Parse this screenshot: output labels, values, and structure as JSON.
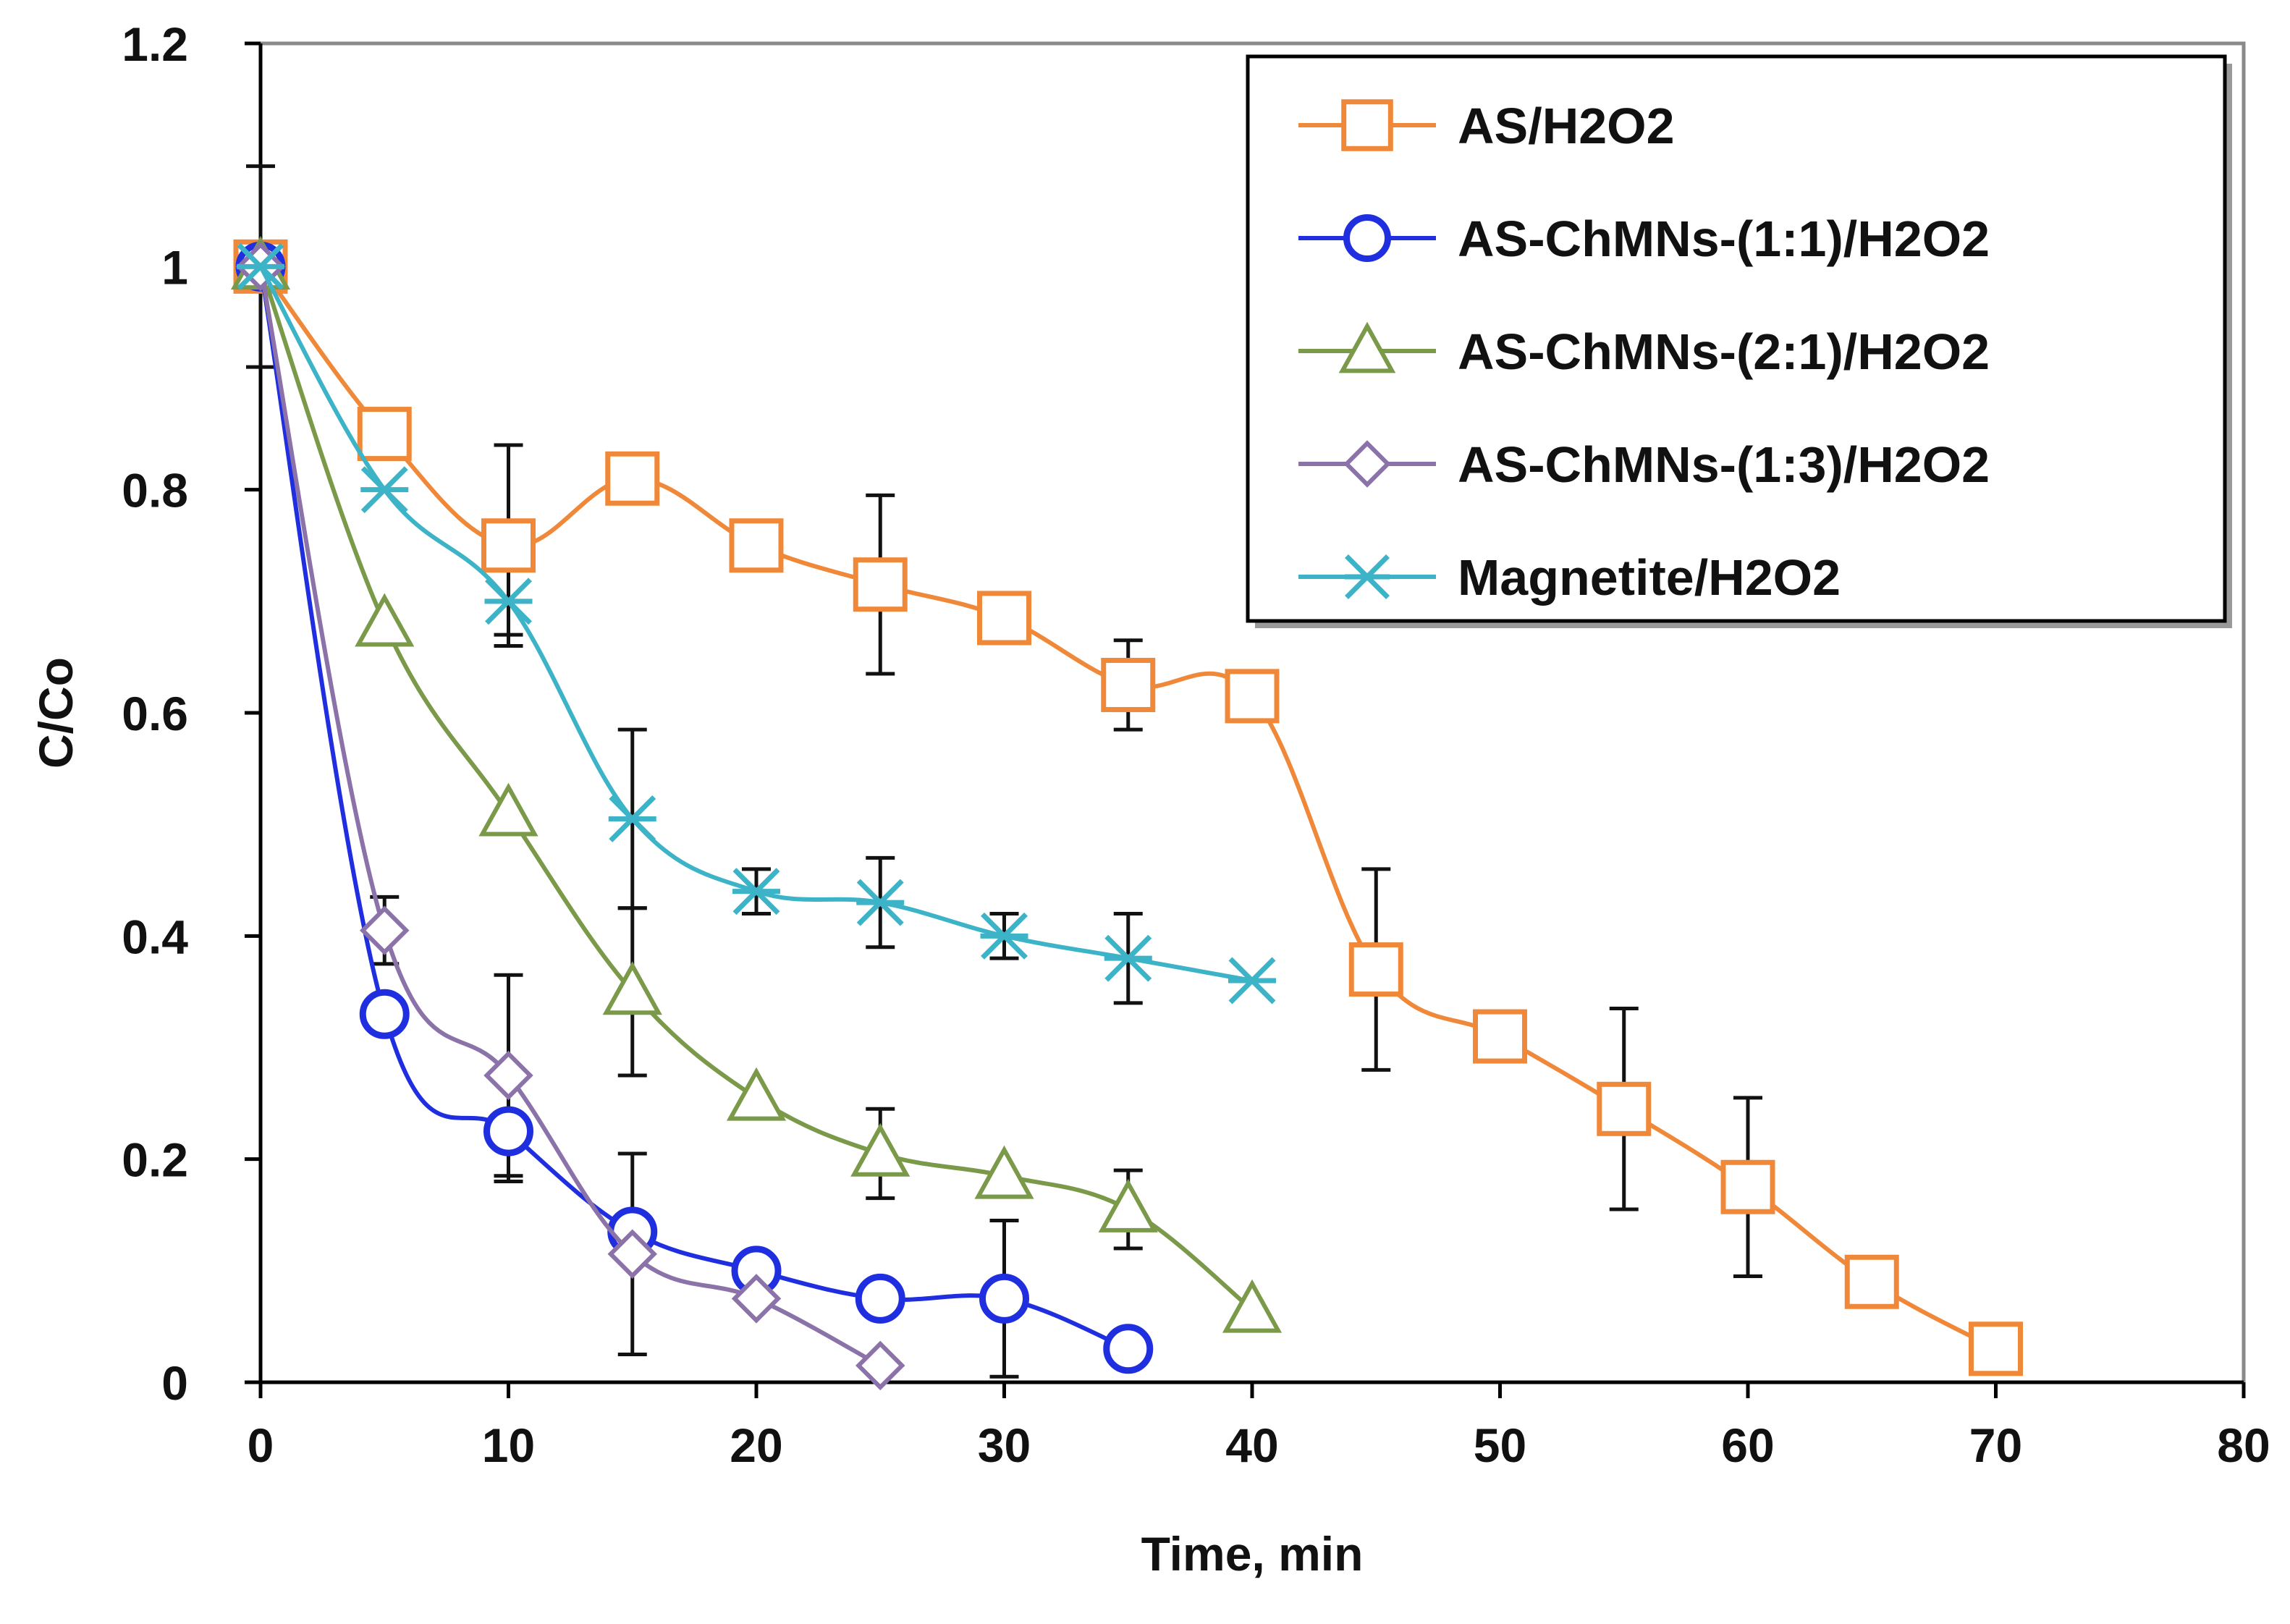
{
  "chart_data": {
    "type": "line",
    "title": "",
    "xlabel": "Time, min",
    "ylabel": "C/Co",
    "xlim": [
      0,
      80
    ],
    "ylim": [
      0,
      1.2
    ],
    "x_ticks": [
      "0",
      "10",
      "20",
      "30",
      "40",
      "50",
      "60",
      "70",
      "80"
    ],
    "y_ticks": [
      "0",
      "0.2",
      "0.4",
      "0.6",
      "0.8",
      "1",
      "1.2"
    ],
    "grid": false,
    "legend_position": "top-right",
    "series": [
      {
        "name": "AS/H2O2",
        "color": "#F0883A",
        "marker": "square",
        "x": [
          0,
          5,
          10,
          15,
          20,
          25,
          30,
          35,
          40,
          45,
          50,
          55,
          60,
          65,
          70
        ],
        "y": [
          1.0,
          0.85,
          0.75,
          0.81,
          0.75,
          0.715,
          0.685,
          0.625,
          0.615,
          0.37,
          0.31,
          0.245,
          0.175,
          0.09,
          0.03
        ],
        "err": [
          0,
          0,
          0.09,
          0,
          0,
          0.08,
          0,
          0.04,
          0,
          0.09,
          0,
          0.09,
          0.08,
          0,
          0
        ]
      },
      {
        "name": "AS-ChMNs-(1:1)/H2O2",
        "color": "#1F2FE0",
        "marker": "circle",
        "x": [
          0,
          5,
          10,
          15,
          20,
          25,
          30,
          35
        ],
        "y": [
          1.0,
          0.33,
          0.225,
          0.135,
          0.1,
          0.075,
          0.075,
          0.03
        ],
        "err": [
          0,
          0,
          0.045,
          0,
          0,
          0,
          0.07,
          0
        ]
      },
      {
        "name": "AS-ChMNs-(2:1)/H2O2",
        "color": "#7A9A4A",
        "marker": "triangle",
        "x": [
          0,
          5,
          10,
          15,
          20,
          25,
          30,
          35,
          40
        ],
        "y": [
          1.0,
          0.68,
          0.51,
          0.35,
          0.255,
          0.205,
          0.185,
          0.155,
          0.065
        ],
        "err": [
          0.09,
          0,
          0,
          0.075,
          0,
          0.04,
          0,
          0.035,
          0
        ]
      },
      {
        "name": "AS-ChMNs-(1:3)/H2O2",
        "color": "#8B72A8",
        "marker": "diamond",
        "x": [
          0,
          5,
          10,
          15,
          20,
          25
        ],
        "y": [
          1.0,
          0.405,
          0.275,
          0.115,
          0.075,
          0.015
        ],
        "err": [
          0,
          0.03,
          0.09,
          0.09,
          0,
          0
        ]
      },
      {
        "name": "Magnetite/H2O2",
        "color": "#3DB3C8",
        "marker": "x",
        "x": [
          0,
          5,
          10,
          15,
          20,
          25,
          30,
          35,
          40
        ],
        "y": [
          1.0,
          0.8,
          0.7,
          0.505,
          0.44,
          0.43,
          0.4,
          0.38,
          0.36
        ],
        "err": [
          0,
          0,
          0.03,
          0.08,
          0.02,
          0.04,
          0.02,
          0.04,
          0
        ]
      }
    ]
  }
}
